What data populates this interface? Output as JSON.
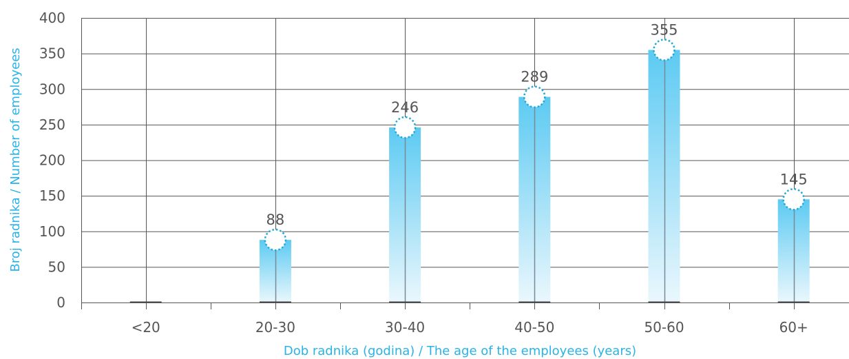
{
  "chart_data": {
    "type": "bar",
    "categories": [
      "<20",
      "20-30",
      "30-40",
      "40-50",
      "50-60",
      "60+"
    ],
    "values": [
      0,
      88,
      246,
      289,
      355,
      145
    ],
    "value_labels": [
      "",
      "88",
      "246",
      "289",
      "355",
      "145"
    ],
    "title": "",
    "xlabel": "Dob radnika (godina) / The age of the employees (years)",
    "ylabel": "Broj radnika / Number of employees",
    "ylim": [
      0,
      400
    ],
    "yticks": [
      "0",
      "50",
      "100",
      "150",
      "200",
      "250",
      "300",
      "350",
      "400"
    ],
    "grid": true,
    "colors": {
      "bar_top": "#5ccaf2",
      "bar_bottom": "#eaf7fd",
      "marker": "#1fa8da",
      "axis_title": "#29b3e6",
      "grid": "#555555"
    }
  }
}
